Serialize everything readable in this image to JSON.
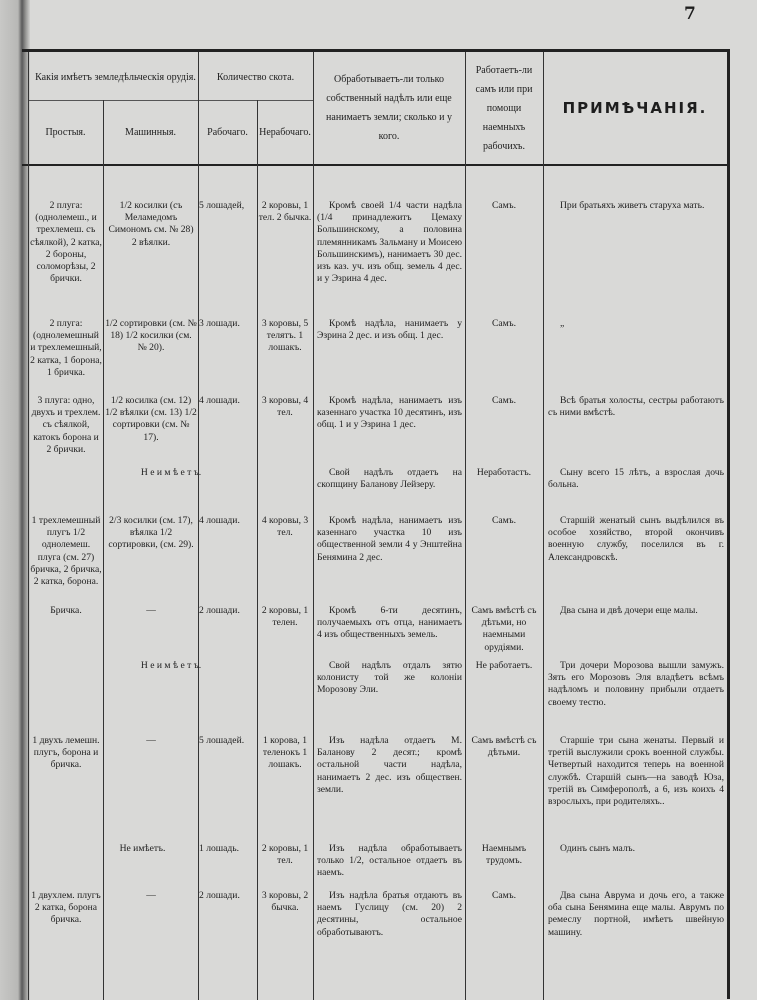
{
  "page_number": "7",
  "header": {
    "tools_group": "Какія имѣетъ земледѣльческія орудія.",
    "tools_simple": "Простыя.",
    "tools_machine": "Машинныя.",
    "livestock_group": "Количество скота.",
    "livestock_working": "Рабочаго.",
    "livestock_nonworking": "Нерабочаго.",
    "land": "Обработываетъ-ли только собственный надѣлъ или еще нанимаетъ земли; сколько и у кого.",
    "labor": "Работаетъ-ли самъ или при помощи наемныхъ рабочихъ.",
    "notes": "ПРИМѢЧАНІЯ."
  },
  "rows": [
    {
      "simple": "2 плуга: (однолемеш., и трехлемеш. съ сѣялкой), 2 катка, 2 бороны, соломорѣзы, 2 брички.",
      "machine": "1/2 косилки (съ Меламедомъ Симономъ см. № 28) 2 вѣялки.",
      "working": "5 лошадей,",
      "nonworking": "2 коровы, 1 тел. 2 бычка.",
      "land": "Кромѣ своей 1/4 части надѣла (1/4 принадлежитъ Цемаху Большинскому, а половина племянникамъ Зальману и Моисею Большинскимъ), нанимаетъ 30 дес. изъ каз. уч. изъ общ. земель 4 дес. и у Эзрина 4 дес.",
      "labor": "Самъ.",
      "notes": "При братьяхъ живетъ старуха мать."
    },
    {
      "simple": "2 плуга: (однолемешный и трехлемешный, 2 катка, 1 борона, 1 бричка.",
      "machine": "1/2 сортировки (см. № 18) 1/2 косилки (см. № 20).",
      "working": "3 лошади.",
      "nonworking": "3 коровы, 5 телятъ. 1 лошакъ.",
      "land": "Кромѣ надѣла, нанимаетъ у Эзрина 2 дес. и изъ общ. 1 дес.",
      "labor": "Самъ.",
      "notes": "„"
    },
    {
      "simple": "3 плуга: одно, двухъ и трехлем. съ сѣялкой, катокъ борона и 2 брички.",
      "machine": "1/2 косилка (см. 12) 1/2 вѣялки (см. 13) 1/2 сортировки (см. № 17).",
      "working": "4 лошади.",
      "nonworking": "3 коровы, 4 тел.",
      "land": "Кромѣ надѣла, нанимаетъ изъ казеннаго участка 10 десятинъ, изъ общ. 1 и у Эзрина 1 дес.",
      "labor": "Самъ.",
      "notes": "Всѣ братья холосты, сестры работаютъ съ ними вмѣстѣ."
    },
    {
      "span": "Н е и м ѣ е т ъ.",
      "land": "Свой надѣлъ отдаетъ на скопщину Баланову Лейзеру.",
      "labor": "Неработастъ.",
      "notes": "Сыну всего 15 лѣтъ, а взрослая дочь больна."
    },
    {
      "simple": "1 трехлемешный плугъ 1/2 однолемеш. плуга (см. 27) бричка, 2 бричка, 2 катка, борона.",
      "machine": "2/3 косилки (см. 17), вѣялка 1/2 сортировки, (см. 29).",
      "working": "4 лошади.",
      "nonworking": "4 коровы, 3 тел.",
      "land": "Кромѣ надѣла, нанимаетъ изъ казеннаго участка 10 изъ общественной земли 4 у Энштейна Бенямина 2 дес.",
      "labor": "Самъ.",
      "notes": "Старшій женатый сынъ выдѣлился въ особое хозяйство, второй окончивъ военную службу, поселился въ г. Александровскѣ."
    },
    {
      "simple": "Бричка.",
      "machine": "—",
      "working": "2 лошади.",
      "nonworking": "2 коровы, 1 телен.",
      "land": "Кромѣ 6-ти десятинъ, получаемыхъ отъ отца, нанимаетъ 4 изъ общественныхъ земель.",
      "labor": "Самъ вмѣстѣ съ дѣтьми, но наемными орудіями.",
      "notes": "Два сына и двѣ дочери еще малы."
    },
    {
      "span": "Н е и м ѣ е т ъ.",
      "land": "Свой надѣлъ отдалъ зятю колонисту той же колоніи Морозову Эли.",
      "labor": "Не работаетъ.",
      "notes": "Три дочери Морозова вышли замужъ. Зять его Морозовъ Эля владѣетъ всѣмъ надѣломъ и половину прибыли отдаетъ своему тестю."
    },
    {
      "simple": "1 двухъ лемешн. плугъ, борона и бричка.",
      "machine": "—",
      "working": "5 лошадей.",
      "nonworking": "1 корова, 1 теленокъ 1 лошакъ.",
      "land": "Изъ надѣла отдаетъ М. Баланову 2 десят.; кромѣ остальной части надѣла, нанимаетъ 2 дес. изъ обществен. земли.",
      "labor": "Самъ вмѣстѣ съ дѣтьми.",
      "notes": "Старшіе три сына женаты. Первый и третій выслужили срокъ военной службы. Четвертый находится теперь на военной службѣ. Старшій сынъ—на заводѣ Юза, третій въ Симферополѣ, а 6, изъ коихъ 4 взрослыхъ, при родителяхъ.."
    },
    {
      "span2": "Не имѣетъ.",
      "working": "1 лошадь.",
      "nonworking": "2 коровы, 1 тел.",
      "land": "Изъ надѣла обработываетъ только 1/2, остальное отдаетъ въ наемъ.",
      "labor": "Наемнымъ трудомъ.",
      "notes": "Одинъ сынъ малъ."
    },
    {
      "simple": "1 двухлем. плугъ 2 катка, борона бричка.",
      "machine": "—",
      "working": "2 лошади.",
      "nonworking": "3 коровы, 2 бычка.",
      "land": "Изъ надѣла братья отдаютъ въ наемъ Гуслицу (см. 20) 2 десятины, остальное обработываютъ.",
      "labor": "Самъ.",
      "notes": "Два сына Аврума и дочь его, а также оба сына Бенямина еще малы. Аврумъ по ремеслу портной, имѣетъ швейную машину."
    }
  ]
}
